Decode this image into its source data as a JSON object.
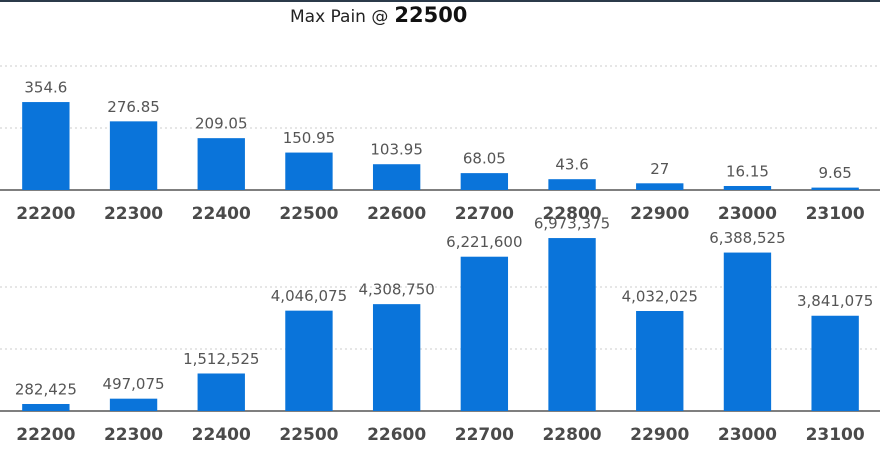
{
  "header": {
    "label": "Max Pain @",
    "strike": "22500"
  },
  "chart_data": [
    {
      "type": "bar",
      "color": "#0a74da",
      "grid": true,
      "categories": [
        "22200",
        "22300",
        "22400",
        "22500",
        "22600",
        "22700",
        "22800",
        "22900",
        "23000",
        "23100"
      ],
      "values": [
        354.6,
        276.85,
        209.05,
        150.95,
        103.95,
        68.05,
        43.6,
        27,
        16.15,
        9.65
      ],
      "ylim": [
        0,
        750
      ],
      "yticks": [
        0,
        250,
        500
      ]
    },
    {
      "type": "bar",
      "color": "#0a74da",
      "grid": true,
      "categories": [
        "22200",
        "22300",
        "22400",
        "22500",
        "22600",
        "22700",
        "22800",
        "22900",
        "23000",
        "23100"
      ],
      "values": [
        282425,
        497075,
        1512525,
        4046075,
        4308750,
        6221600,
        6973375,
        4032025,
        6388525,
        3841075
      ],
      "value_labels": [
        "282,425",
        "497,075",
        "1,512,525",
        "4,046,075",
        "4,308,750",
        "6,221,600",
        "6,973,375",
        "4,032,025",
        "6,388,525",
        "3,841,075"
      ],
      "ylim": [
        0,
        7500000
      ],
      "yticks": [
        0,
        2500000,
        5000000
      ]
    }
  ]
}
